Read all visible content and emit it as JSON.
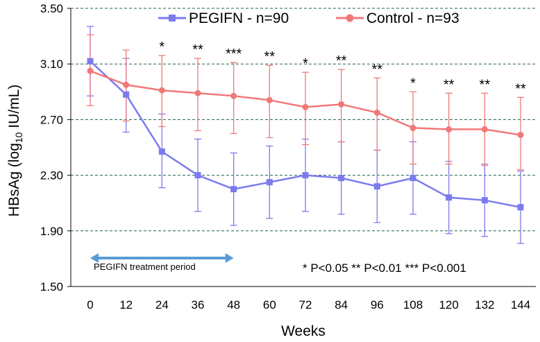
{
  "chart_data": {
    "type": "line",
    "xlabel": "Weeks",
    "ylabel": "HBsAg (log10 IU/mL)",
    "ylabel_main": "HBsAg (log",
    "ylabel_sub": "10",
    "ylabel_tail": " IU/mL)",
    "ylim": [
      1.5,
      3.5
    ],
    "yticks": [
      "3.50",
      "3.10",
      "2.70",
      "2.30",
      "1.90",
      "1.50"
    ],
    "x": [
      0,
      12,
      24,
      36,
      48,
      60,
      72,
      84,
      96,
      108,
      120,
      132,
      144
    ],
    "xticks": [
      "0",
      "12",
      "24",
      "36",
      "48",
      "60",
      "72",
      "84",
      "96",
      "108",
      "120",
      "132",
      "144"
    ],
    "grid": "horizontal dashed",
    "legend_position": "top",
    "series": [
      {
        "name": "PEGIFN - n=90",
        "color": "#7b7bef",
        "marker": "square",
        "values": [
          3.12,
          2.88,
          2.47,
          2.3,
          2.2,
          2.25,
          2.3,
          2.28,
          2.22,
          2.28,
          2.14,
          2.12,
          2.07
        ],
        "error_upper": [
          3.37,
          3.14,
          2.74,
          2.56,
          2.46,
          2.51,
          2.56,
          2.54,
          2.48,
          2.54,
          2.4,
          2.38,
          2.33
        ],
        "error_lower": [
          2.87,
          2.61,
          2.21,
          2.04,
          1.94,
          1.99,
          2.04,
          2.02,
          1.96,
          2.02,
          1.88,
          1.86,
          1.81
        ]
      },
      {
        "name": "Control - n=93",
        "color": "#f07878",
        "marker": "circle",
        "values": [
          3.05,
          2.95,
          2.91,
          2.89,
          2.87,
          2.84,
          2.79,
          2.81,
          2.75,
          2.64,
          2.63,
          2.63,
          2.59
        ],
        "error_upper": [
          3.31,
          3.2,
          3.16,
          3.14,
          3.11,
          3.09,
          3.04,
          3.06,
          3.0,
          2.9,
          2.89,
          2.89,
          2.86
        ],
        "error_lower": [
          2.8,
          2.69,
          2.65,
          2.62,
          2.6,
          2.57,
          2.52,
          2.54,
          2.48,
          2.38,
          2.38,
          2.37,
          2.34
        ]
      }
    ],
    "significance": [
      {
        "x": 24,
        "label": "*"
      },
      {
        "x": 36,
        "label": "**"
      },
      {
        "x": 48,
        "label": "***"
      },
      {
        "x": 60,
        "label": "**"
      },
      {
        "x": 72,
        "label": "*"
      },
      {
        "x": 84,
        "label": "**"
      },
      {
        "x": 96,
        "label": "**"
      },
      {
        "x": 108,
        "label": "*"
      },
      {
        "x": 120,
        "label": "**"
      },
      {
        "x": 132,
        "label": "**"
      },
      {
        "x": 144,
        "label": "**"
      }
    ],
    "treatment_period": {
      "label": "PEGIFN treatment period",
      "x_start": 0,
      "x_end": 48,
      "color": "#5b9bd5"
    },
    "annotation": "* P<0.05 ** P<0.01 *** P<0.001"
  }
}
